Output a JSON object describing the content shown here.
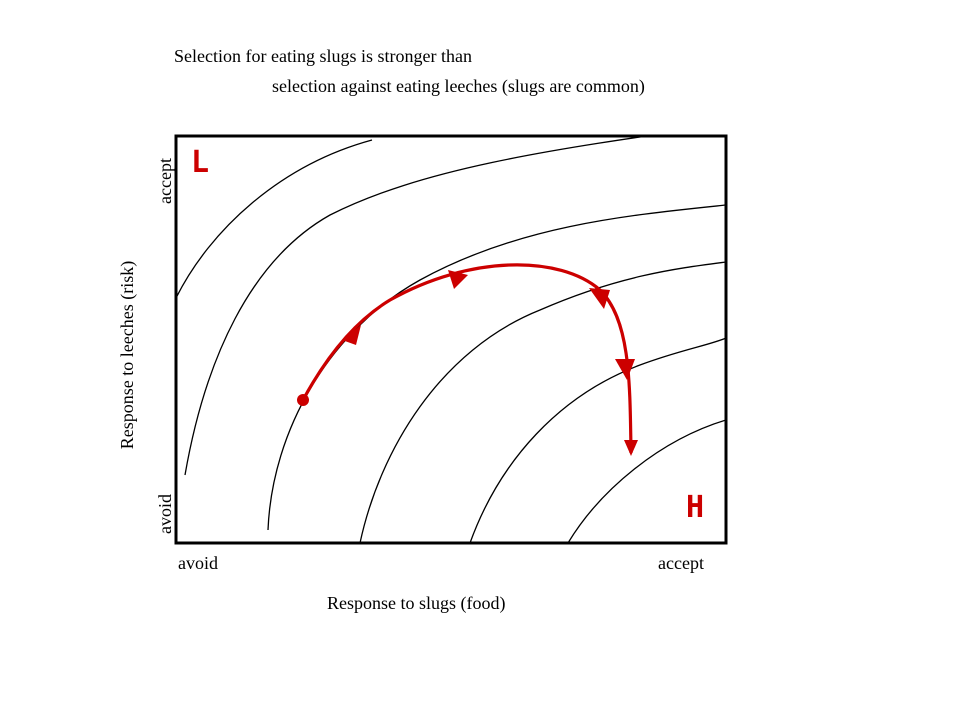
{
  "title": {
    "line1": "Selection for eating slugs is stronger than",
    "line2": "selection against eating leeches  (slugs are common)"
  },
  "axes": {
    "x_label": "Response to slugs (food)",
    "x_min_label": "avoid",
    "x_max_label": "accept",
    "y_label": "Response to leeches (risk)",
    "y_min_label": "avoid",
    "y_max_label": "accept"
  },
  "regions": {
    "low": "L",
    "high": "H"
  },
  "colors": {
    "trajectory": "#cc0000",
    "contours": "#000000",
    "frame": "#000000"
  },
  "contour_count": 6
}
